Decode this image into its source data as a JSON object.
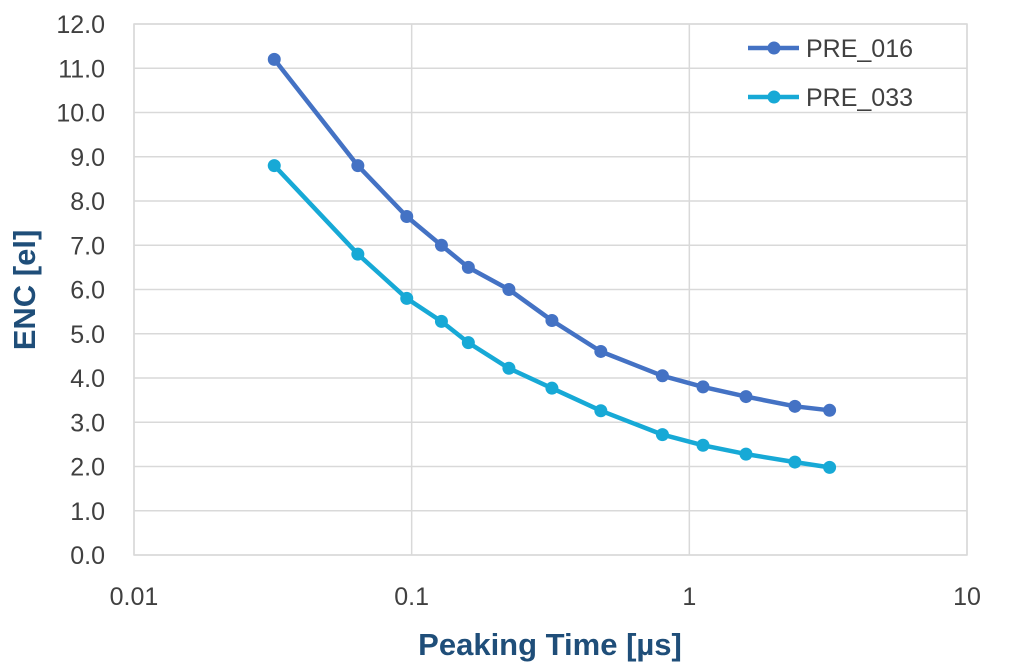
{
  "chart_data": {
    "type": "line",
    "title": "",
    "xlabel": "Peaking Time [µs]",
    "ylabel": "ENC [el]",
    "x_scale": "log",
    "xlim": [
      0.01,
      10
    ],
    "ylim": [
      0,
      12
    ],
    "x_ticks": [
      0.01,
      0.1,
      1,
      10
    ],
    "x_tick_labels": [
      "0.01",
      "0.1",
      "1",
      "10"
    ],
    "y_ticks": [
      0,
      1,
      2,
      3,
      4,
      5,
      6,
      7,
      8,
      9,
      10,
      11,
      12
    ],
    "y_tick_labels": [
      "0.0",
      "1.0",
      "2.0",
      "3.0",
      "4.0",
      "5.0",
      "6.0",
      "7.0",
      "8.0",
      "9.0",
      "10.0",
      "11.0",
      "12.0"
    ],
    "grid": true,
    "legend_position": "top-right",
    "x": [
      0.032,
      0.064,
      0.096,
      0.128,
      0.16,
      0.224,
      0.32,
      0.48,
      0.8,
      1.12,
      1.6,
      2.4,
      3.2
    ],
    "series": [
      {
        "name": "PRE_016",
        "color": "#4472c4",
        "values": [
          11.2,
          8.8,
          7.65,
          7.0,
          6.5,
          6.0,
          5.3,
          4.6,
          4.05,
          3.8,
          3.58,
          3.36,
          3.27
        ]
      },
      {
        "name": "PRE_033",
        "color": "#17a9d6",
        "values": [
          8.8,
          6.8,
          5.8,
          5.28,
          4.8,
          4.22,
          3.77,
          3.26,
          2.72,
          2.48,
          2.28,
          2.1,
          1.98
        ]
      }
    ]
  }
}
